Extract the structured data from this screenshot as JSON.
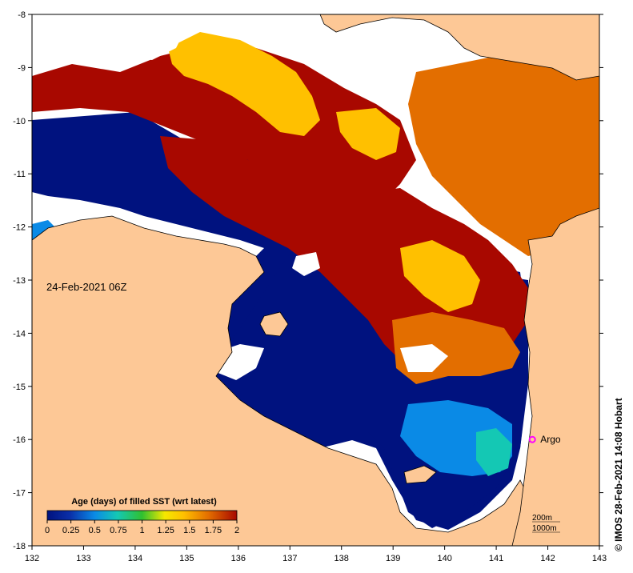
{
  "map": {
    "date_label": "24-Feb-2021 06Z",
    "colorbar": {
      "title": "Age (days) of filled SST (wrt latest)",
      "ticks": [
        "0",
        "0.25",
        "0.5",
        "0.75",
        "1",
        "1.25",
        "1.5",
        "1.75",
        "2"
      ],
      "min": 0,
      "max": 2
    },
    "lon_ticks": [
      "132",
      "133",
      "134",
      "135",
      "136",
      "137",
      "138",
      "139",
      "140",
      "141",
      "142",
      "143"
    ],
    "lat_ticks": [
      "-8",
      "-9",
      "-10",
      "-11",
      "-12",
      "-13",
      "-14",
      "-15",
      "-16",
      "-17",
      "-18"
    ],
    "lon_range": [
      132,
      143
    ],
    "lat_range": [
      -18,
      -8
    ],
    "marker": {
      "label": "Argo",
      "lon": 141.7,
      "lat": -16.0,
      "color": "#ff00ff"
    },
    "contours": [
      "200m",
      "1000m"
    ],
    "credit": "© IMOS 28-Feb-2021 14:08 Hobart",
    "colors": {
      "land": "#fdc896",
      "cloud": "#ffffff",
      "age_0": "#00127f",
      "age_0_25": "#0a2fa8",
      "age_0_5": "#0a8ae6",
      "age_0_75": "#14c8b4",
      "age_1": "#30c030",
      "age_1_25": "#f5e800",
      "age_1_5": "#ffc000",
      "age_1_75": "#e36e00",
      "age_2": "#a80800"
    }
  }
}
